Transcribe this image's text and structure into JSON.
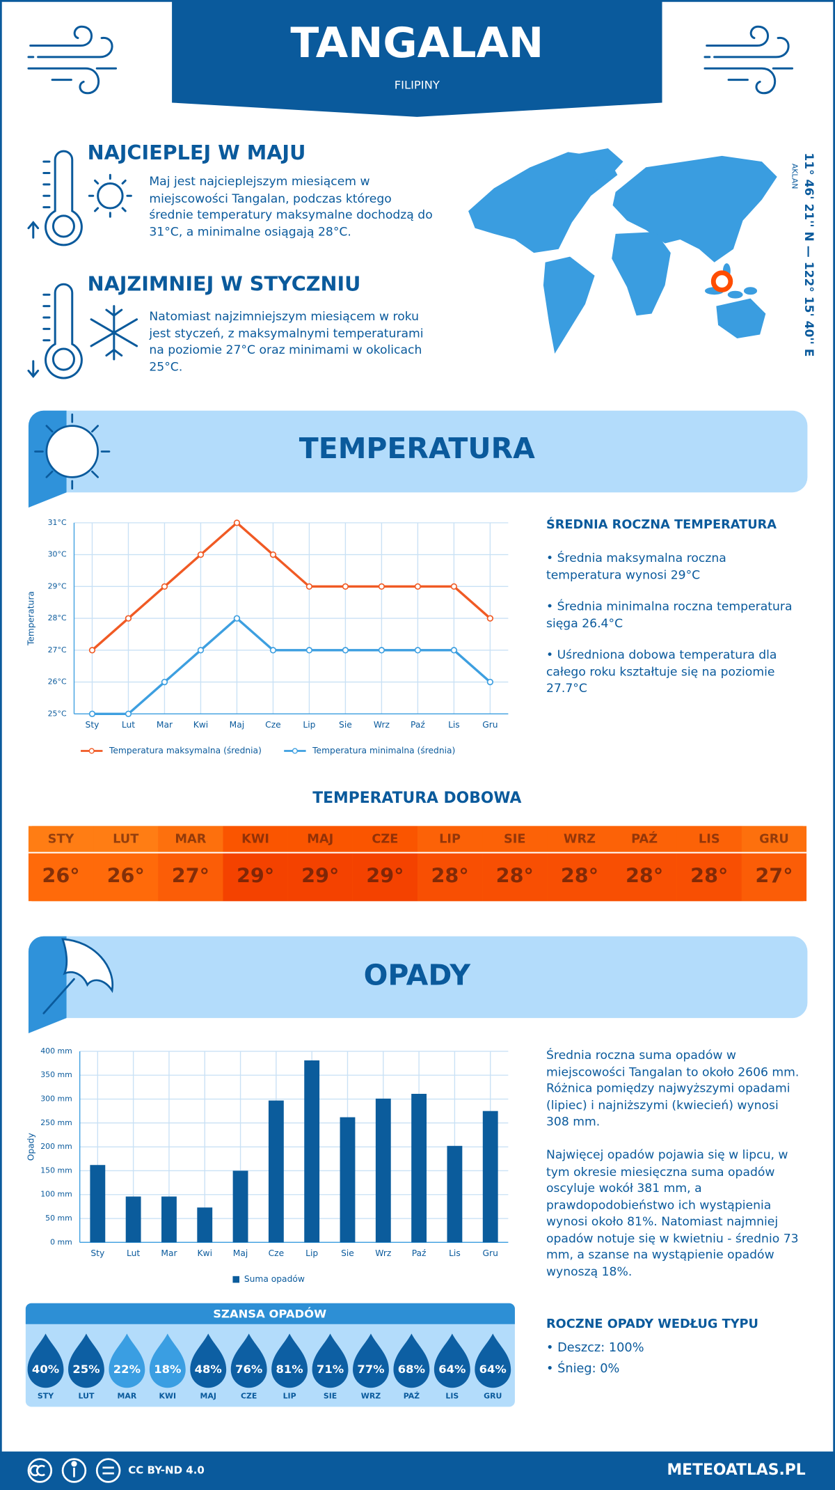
{
  "header": {
    "title": "TANGALAN",
    "subtitle": "FILIPINY"
  },
  "highlights": [
    {
      "title": "NAJCIEPLEJ W MAJU",
      "text": "Maj jest najcieplejszym miesiącem w miejscowości Tangalan, podczas którego średnie temperatury maksymalne dochodzą do 31°C, a minimalne osiągają 28°C."
    },
    {
      "title": "NAJZIMNIEJ W STYCZNIU",
      "text": "Natomiast najzimniejszym miesiącem w roku jest styczeń, z maksymalnymi temperaturami na poziomie 27°C oraz minimami w okolicach 25°C."
    }
  ],
  "map": {
    "region": "AKLAN",
    "coordinates": "11° 46' 21'' N — 122° 15' 40'' E"
  },
  "temperature": {
    "title": "TEMPERATURA",
    "stats": {
      "title": "ŚREDNIA ROCZNA TEMPERATURA",
      "items": [
        "• Średnia maksymalna roczna temperatura wynosi 29°C",
        "• Średnia minimalna roczna temperatura sięga 26.4°C",
        "• Uśredniona dobowa temperatura dla całego roku kształtuje się na poziomie 27.7°C"
      ]
    }
  },
  "precipitation": {
    "title": "OPADY",
    "paragraphs": [
      "Średnia roczna suma opadów w miejscowości Tangalan to około 2606 mm. Różnica pomiędzy najwyższymi opadami (lipiec) i najniższymi (kwiecień) wynosi 308 mm.",
      "Najwięcej opadów pojawia się w lipcu, w tym okresie miesięczna suma opadów oscyluje wokół 381 mm, a prawdopodobieństwo ich wystąpienia wynosi około 81%. Natomiast najmniej opadów notuje się w kwietniu - średnio 73 mm, a szanse na wystąpienie opadów wynoszą 18%."
    ],
    "types": {
      "title": "ROCZNE OPADY WEDŁUG TYPU",
      "items": [
        "• Deszcz: 100%",
        "• Śnieg: 0%"
      ]
    }
  },
  "footer": {
    "license": "CC BY-ND 4.0",
    "site": "METEOATLAS.PL"
  },
  "chart_data": [
    {
      "type": "line",
      "y_label": "Temperatura",
      "categories": [
        "Sty",
        "Lut",
        "Mar",
        "Kwi",
        "Maj",
        "Cze",
        "Lip",
        "Sie",
        "Wrz",
        "Paź",
        "Lis",
        "Gru"
      ],
      "series": [
        {
          "name": "Temperatura maksymalna (średnia)",
          "color": "#f05a24",
          "values": [
            27,
            28,
            29,
            30,
            31,
            30,
            29,
            29,
            29,
            29,
            29,
            28
          ]
        },
        {
          "name": "Temperatura minimalna (średnia)",
          "color": "#3d9fe0",
          "values": [
            25,
            25,
            26,
            27,
            28,
            27,
            27,
            27,
            27,
            27,
            27,
            26
          ]
        }
      ],
      "ylim": [
        25,
        31
      ],
      "yticks": [
        {
          "value": 25,
          "label": "25°C"
        },
        {
          "value": 26,
          "label": "26°C"
        },
        {
          "value": 27,
          "label": "27°C"
        },
        {
          "value": 28,
          "label": "28°C"
        },
        {
          "value": 29,
          "label": "29°C"
        },
        {
          "value": 30,
          "label": "30°C"
        },
        {
          "value": 31,
          "label": "31°C"
        }
      ],
      "grid": true
    },
    {
      "type": "heatstrip",
      "title": "TEMPERATURA DOBOWA",
      "categories": [
        "STY",
        "LUT",
        "MAR",
        "KWI",
        "MAJ",
        "CZE",
        "LIP",
        "SIE",
        "WRZ",
        "PAŹ",
        "LIS",
        "GRU"
      ],
      "values": [
        26,
        26,
        27,
        29,
        29,
        29,
        28,
        28,
        28,
        28,
        28,
        27
      ],
      "value_labels": [
        "26°",
        "26°",
        "27°",
        "29°",
        "29°",
        "29°",
        "28°",
        "28°",
        "28°",
        "28°",
        "28°",
        "27°"
      ]
    },
    {
      "type": "bar",
      "y_label": "Opady",
      "categories": [
        "Sty",
        "Lut",
        "Mar",
        "Kwi",
        "Maj",
        "Cze",
        "Lip",
        "Sie",
        "Wrz",
        "Paź",
        "Lis",
        "Gru"
      ],
      "series": [
        {
          "name": "Suma opadów",
          "color": "#0b5c9c",
          "values": [
            162,
            96,
            96,
            73,
            150,
            297,
            381,
            262,
            301,
            311,
            202,
            275
          ]
        }
      ],
      "ylim": [
        0,
        400
      ],
      "yticks": [
        {
          "value": 0,
          "label": "0 mm"
        },
        {
          "value": 50,
          "label": "50 mm"
        },
        {
          "value": 100,
          "label": "100 mm"
        },
        {
          "value": 150,
          "label": "150 mm"
        },
        {
          "value": 200,
          "label": "200 mm"
        },
        {
          "value": 250,
          "label": "250 mm"
        },
        {
          "value": 300,
          "label": "300 mm"
        },
        {
          "value": 350,
          "label": "350 mm"
        },
        {
          "value": 400,
          "label": "400 mm"
        }
      ],
      "grid": true
    },
    {
      "type": "drops",
      "title": "SZANSA OPADÓW",
      "categories": [
        "STY",
        "LUT",
        "MAR",
        "KWI",
        "MAJ",
        "CZE",
        "LIP",
        "SIE",
        "WRZ",
        "PAŹ",
        "LIS",
        "GRU"
      ],
      "values": [
        40,
        25,
        22,
        18,
        48,
        76,
        81,
        71,
        77,
        68,
        64,
        64
      ],
      "value_labels": [
        "40%",
        "25%",
        "22%",
        "18%",
        "48%",
        "76%",
        "81%",
        "71%",
        "77%",
        "68%",
        "64%",
        "64%"
      ]
    }
  ]
}
